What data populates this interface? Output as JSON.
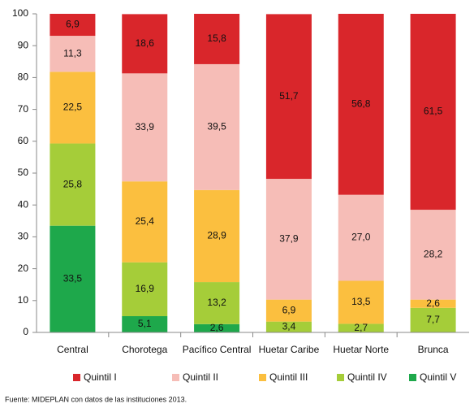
{
  "chart_data": {
    "type": "stacked_bar",
    "categories": [
      "Central",
      "Chorotega",
      "Pacífico Central",
      "Huetar Caribe",
      "Huetar Norte",
      "Brunca"
    ],
    "series": [
      {
        "name": "Quintil I",
        "color": "#d9262b",
        "values": [
          6.9,
          18.6,
          15.8,
          51.7,
          56.8,
          61.5
        ],
        "value_labels": [
          "6,9",
          "18,6",
          "15,8",
          "51,7",
          "56,8",
          "61,5"
        ]
      },
      {
        "name": "Quintil II",
        "color": "#f6bdb7",
        "values": [
          11.3,
          33.9,
          39.5,
          37.9,
          27.0,
          28.2
        ],
        "value_labels": [
          "11,3",
          "33,9",
          "39,5",
          "37,9",
          "27,0",
          "28,2"
        ]
      },
      {
        "name": "Quintil III",
        "color": "#fbbf3f",
        "values": [
          22.5,
          25.4,
          28.9,
          6.9,
          13.5,
          2.6
        ],
        "value_labels": [
          "22,5",
          "25,4",
          "28,9",
          "6,9",
          "13,5",
          "2,6"
        ]
      },
      {
        "name": "Quintil IV",
        "color": "#a5cd39",
        "values": [
          25.8,
          16.9,
          13.2,
          3.4,
          2.7,
          7.7
        ],
        "value_labels": [
          "25,8",
          "16,9",
          "13,2",
          "3,4",
          "2,7",
          "7,7"
        ]
      },
      {
        "name": "Quintil V",
        "color": "#1ea84b",
        "values": [
          33.5,
          5.1,
          2.6,
          null,
          null,
          null
        ],
        "value_labels": [
          "33,5",
          "5,1",
          "2,6",
          null,
          null,
          null
        ]
      }
    ],
    "ylim": [
      0,
      100
    ],
    "yticks": [
      0,
      10,
      20,
      30,
      40,
      50,
      60,
      70,
      80,
      90,
      100
    ],
    "source": "Fuente: MIDEPLAN  con datos de las instituciones  2013."
  }
}
